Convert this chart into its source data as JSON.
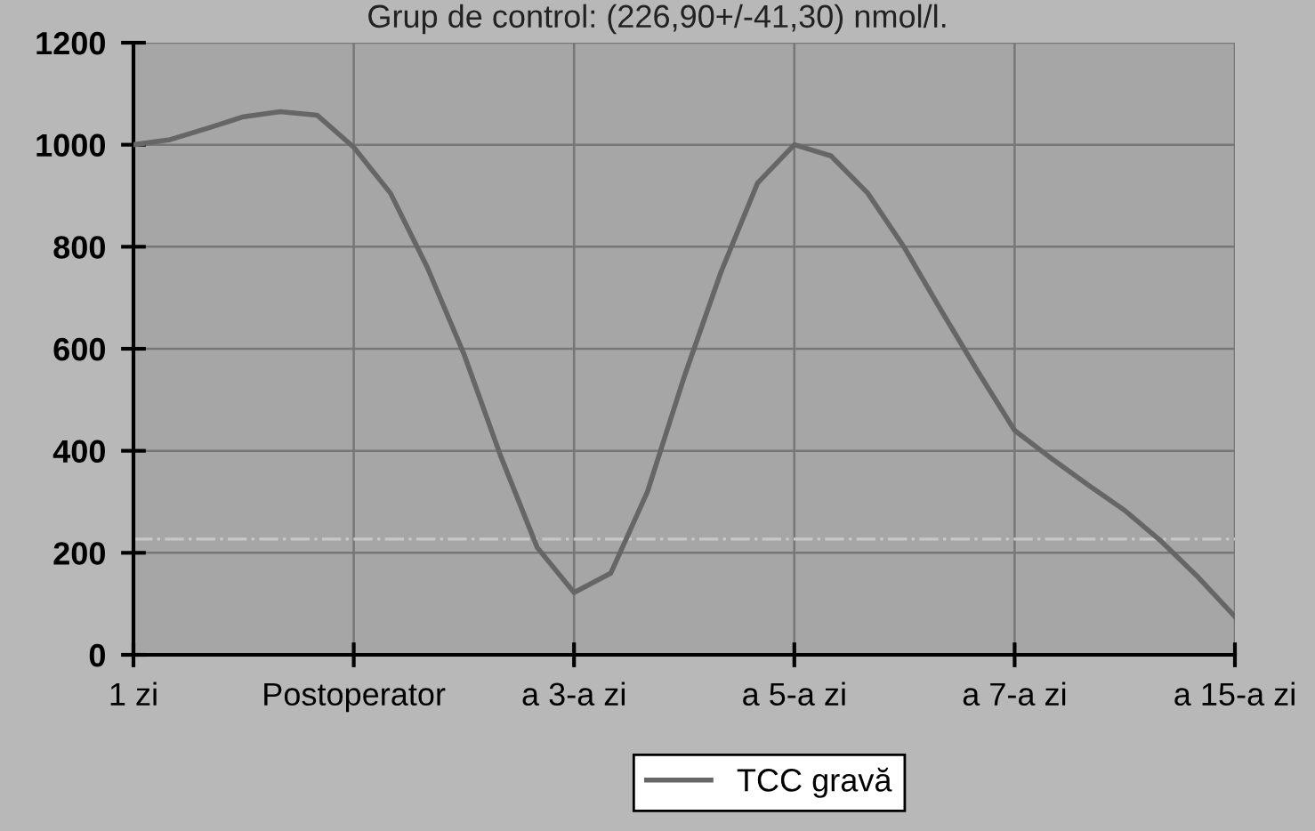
{
  "chart_data": {
    "type": "line",
    "title": "Grup de control: (226,90+/-41,30) nmol/l.",
    "categories": [
      "1 zi",
      null,
      null,
      null,
      null,
      null,
      "Postoperator",
      null,
      null,
      null,
      null,
      null,
      "a 3-a zi",
      null,
      null,
      null,
      null,
      null,
      "a 5-a zi",
      null,
      null,
      null,
      null,
      null,
      "a 7-a zi",
      null,
      null,
      null,
      null,
      null,
      "a 15-a zi"
    ],
    "series": [
      {
        "name": "TCC gravă",
        "color": "#666666",
        "values": [
          1000,
          1010,
          1032,
          1055,
          1065,
          1058,
          995,
          905,
          760,
          590,
          390,
          210,
          122,
          160,
          320,
          545,
          750,
          925,
          1000,
          978,
          905,
          798,
          675,
          555,
          440,
          385,
          333,
          283,
          222,
          152,
          75
        ]
      }
    ],
    "ylim": [
      0,
      1200
    ],
    "yticks": [
      0,
      200,
      400,
      600,
      800,
      1000,
      1200
    ],
    "ref_lines": [
      {
        "axis": "y",
        "value": 226.9,
        "color": "#c8c8c8",
        "line_style": "dashdot"
      }
    ],
    "grid": true,
    "legend": "bottom",
    "marker": "none",
    "line_style": "solid"
  }
}
